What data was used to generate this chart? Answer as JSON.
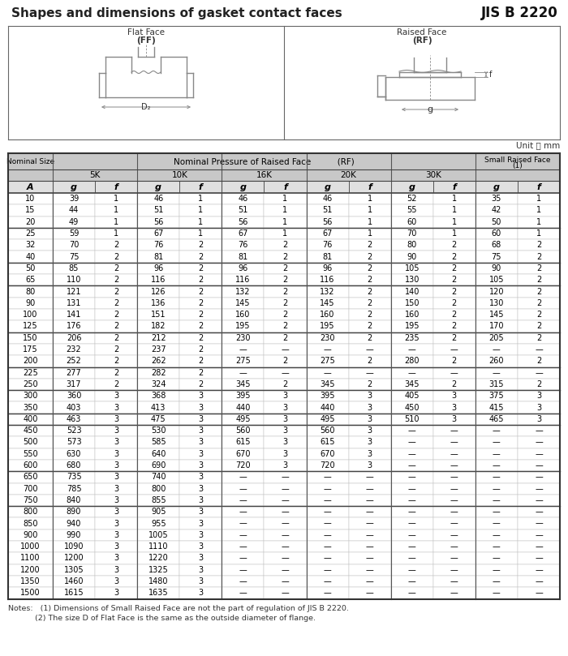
{
  "title": "Shapes and dimensions of gasket contact faces",
  "standard": "JIS B 2220",
  "unit_label": "Unit ： mm",
  "rows": [
    [
      10,
      39,
      1,
      46,
      1,
      46,
      1,
      46,
      1,
      52,
      1,
      35,
      1
    ],
    [
      15,
      44,
      1,
      51,
      1,
      51,
      1,
      51,
      1,
      55,
      1,
      42,
      1
    ],
    [
      20,
      49,
      1,
      56,
      1,
      56,
      1,
      56,
      1,
      60,
      1,
      50,
      1
    ],
    [
      25,
      59,
      1,
      67,
      1,
      67,
      1,
      67,
      1,
      70,
      1,
      60,
      1
    ],
    [
      32,
      70,
      2,
      76,
      2,
      76,
      2,
      76,
      2,
      80,
      2,
      68,
      2
    ],
    [
      40,
      75,
      2,
      81,
      2,
      81,
      2,
      81,
      2,
      90,
      2,
      75,
      2
    ],
    [
      50,
      85,
      2,
      96,
      2,
      96,
      2,
      96,
      2,
      105,
      2,
      90,
      2
    ],
    [
      65,
      110,
      2,
      116,
      2,
      116,
      2,
      116,
      2,
      130,
      2,
      105,
      2
    ],
    [
      80,
      121,
      2,
      126,
      2,
      132,
      2,
      132,
      2,
      140,
      2,
      120,
      2
    ],
    [
      90,
      131,
      2,
      136,
      2,
      145,
      2,
      145,
      2,
      150,
      2,
      130,
      2
    ],
    [
      100,
      141,
      2,
      151,
      2,
      160,
      2,
      160,
      2,
      160,
      2,
      145,
      2
    ],
    [
      125,
      176,
      2,
      182,
      2,
      195,
      2,
      195,
      2,
      195,
      2,
      170,
      2
    ],
    [
      150,
      206,
      2,
      212,
      2,
      230,
      2,
      230,
      2,
      235,
      2,
      205,
      2
    ],
    [
      175,
      232,
      2,
      237,
      2,
      "—",
      "—",
      "—",
      "—",
      "—",
      "—",
      "—",
      "—"
    ],
    [
      200,
      252,
      2,
      262,
      2,
      275,
      2,
      275,
      2,
      280,
      2,
      260,
      2
    ],
    [
      225,
      277,
      2,
      282,
      2,
      "—",
      "—",
      "—",
      "—",
      "—",
      "—",
      "—",
      "—"
    ],
    [
      250,
      317,
      2,
      324,
      2,
      345,
      2,
      345,
      2,
      345,
      2,
      315,
      2
    ],
    [
      300,
      360,
      3,
      368,
      3,
      395,
      3,
      395,
      3,
      405,
      3,
      375,
      3
    ],
    [
      350,
      403,
      3,
      413,
      3,
      440,
      3,
      440,
      3,
      450,
      3,
      415,
      3
    ],
    [
      400,
      463,
      3,
      475,
      3,
      495,
      3,
      495,
      3,
      510,
      3,
      465,
      3
    ],
    [
      450,
      523,
      3,
      530,
      3,
      560,
      3,
      560,
      3,
      "—",
      "—",
      "—",
      "—"
    ],
    [
      500,
      573,
      3,
      585,
      3,
      615,
      3,
      615,
      3,
      "—",
      "—",
      "—",
      "—"
    ],
    [
      550,
      630,
      3,
      640,
      3,
      670,
      3,
      670,
      3,
      "—",
      "—",
      "—",
      "—"
    ],
    [
      600,
      680,
      3,
      690,
      3,
      720,
      3,
      720,
      3,
      "—",
      "—",
      "—",
      "—"
    ],
    [
      650,
      735,
      3,
      740,
      3,
      "—",
      "—",
      "—",
      "—",
      "—",
      "—",
      "—",
      "—"
    ],
    [
      700,
      785,
      3,
      800,
      3,
      "—",
      "—",
      "—",
      "—",
      "—",
      "—",
      "—",
      "—"
    ],
    [
      750,
      840,
      3,
      855,
      3,
      "—",
      "—",
      "—",
      "—",
      "—",
      "—",
      "—",
      "—"
    ],
    [
      800,
      890,
      3,
      905,
      3,
      "—",
      "—",
      "—",
      "—",
      "—",
      "—",
      "—",
      "—"
    ],
    [
      850,
      940,
      3,
      955,
      3,
      "—",
      "—",
      "—",
      "—",
      "—",
      "—",
      "—",
      "—"
    ],
    [
      900,
      990,
      3,
      1005,
      3,
      "—",
      "—",
      "—",
      "—",
      "—",
      "—",
      "—",
      "—"
    ],
    [
      1000,
      1090,
      3,
      1110,
      3,
      "—",
      "—",
      "—",
      "—",
      "—",
      "—",
      "—",
      "—"
    ],
    [
      1100,
      1200,
      3,
      1220,
      3,
      "—",
      "—",
      "—",
      "—",
      "—",
      "—",
      "—",
      "—"
    ],
    [
      1200,
      1305,
      3,
      1325,
      3,
      "—",
      "—",
      "—",
      "—",
      "—",
      "—",
      "—",
      "—"
    ],
    [
      1350,
      1460,
      3,
      1480,
      3,
      "—",
      "—",
      "—",
      "—",
      "—",
      "—",
      "—",
      "—"
    ],
    [
      1500,
      1615,
      3,
      1635,
      3,
      "—",
      "—",
      "—",
      "—",
      "—",
      "—",
      "—",
      "—"
    ]
  ],
  "group_separators": [
    3,
    6,
    8,
    12,
    15,
    17,
    19,
    20,
    24,
    27
  ],
  "notes_line1": "Notes:   (1) Dimensions of Small Raised Face are not the part of regulation of JIS B 2220.",
  "notes_line2": "           (2) The size D of Flat Face is the same as the outside diameter of flange.",
  "bg_color": "#ffffff",
  "header_bg": "#cccccc",
  "text_color": "#000000"
}
